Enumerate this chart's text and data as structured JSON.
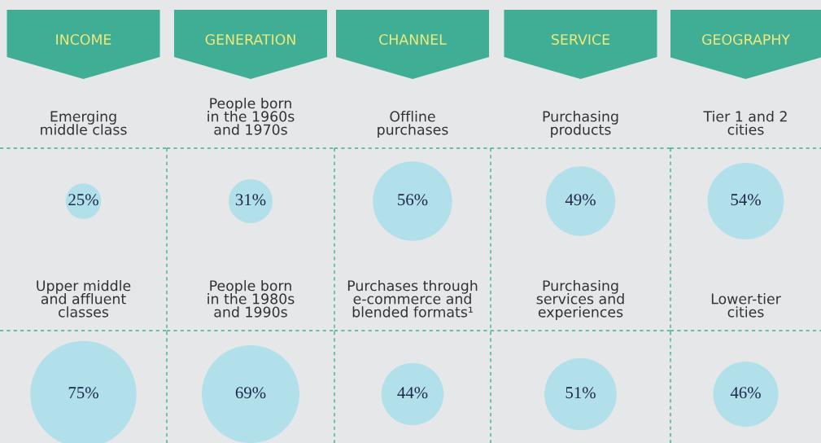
{
  "chart_data": [
    {
      "type": "other",
      "title": "INCOME",
      "categories": [
        "Emerging\nmiddle class",
        "Upper middle\nand affluent\nclasses"
      ],
      "values": [
        25,
        75
      ],
      "value_labels": [
        "25%",
        "75%"
      ],
      "color": "#b2e0ea"
    },
    {
      "type": "other",
      "title": "GENERATION",
      "categories": [
        "People born\nin the 1960s\nand 1970s",
        "People born\nin the 1980s\nand 1990s"
      ],
      "values": [
        31,
        69
      ],
      "value_labels": [
        "31%",
        "69%"
      ],
      "color": "#b2e0ea"
    },
    {
      "type": "other",
      "title": "CHANNEL",
      "categories": [
        "Offline\npurchases",
        "Purchases through\ne-commerce and\nblended formats¹"
      ],
      "values": [
        56,
        44
      ],
      "value_labels": [
        "56%",
        "44%"
      ],
      "color": "#b2e0ea"
    },
    {
      "type": "other",
      "title": "SERVICE",
      "categories": [
        "Purchasing\nproducts",
        "Purchasing\nservices and\nexperiences"
      ],
      "values": [
        49,
        51
      ],
      "value_labels": [
        "49%",
        "51%"
      ],
      "color": "#b2e0ea"
    },
    {
      "type": "other",
      "title": "GEOGRAPHY",
      "categories": [
        "Tier 1 and 2\ncities",
        "Lower-tier\ncities"
      ],
      "values": [
        54,
        46
      ],
      "value_labels": [
        "54%",
        "46%"
      ],
      "color": "#b2e0ea"
    }
  ]
}
